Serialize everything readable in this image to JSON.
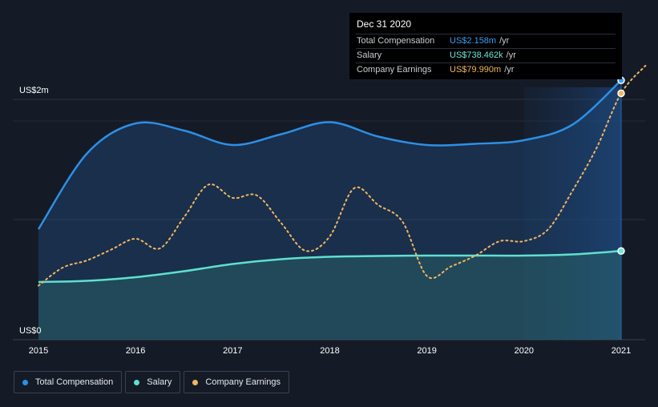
{
  "chart_data": {
    "type": "area",
    "x_ticks": [
      "2015",
      "2016",
      "2017",
      "2018",
      "2019",
      "2020",
      "2021"
    ],
    "y_ticks": [
      {
        "value": 0,
        "label": "US$0"
      },
      {
        "value": 2,
        "label": "US$2m"
      }
    ],
    "ylim": [
      0,
      2.1
    ],
    "units": "US$ millions",
    "series": [
      {
        "name": "Total Compensation",
        "color": "#2d8fe6",
        "x": [
          2015.0,
          2015.5,
          2016.0,
          2016.5,
          2017.0,
          2017.5,
          2018.0,
          2018.5,
          2019.0,
          2019.5,
          2020.0,
          2020.5,
          2021.0
        ],
        "values": [
          0.92,
          1.55,
          1.8,
          1.74,
          1.62,
          1.71,
          1.81,
          1.69,
          1.62,
          1.63,
          1.66,
          1.79,
          2.158
        ]
      },
      {
        "name": "Salary",
        "color": "#5ee0d0",
        "x": [
          2015.0,
          2015.5,
          2016.0,
          2016.5,
          2017.0,
          2017.5,
          2018.0,
          2018.5,
          2019.0,
          2019.5,
          2020.0,
          2020.5,
          2021.0
        ],
        "values": [
          0.48,
          0.49,
          0.52,
          0.57,
          0.63,
          0.67,
          0.69,
          0.697,
          0.7,
          0.7,
          0.7,
          0.71,
          0.738
        ]
      },
      {
        "name": "Company Earnings",
        "color": "#f3b563",
        "x": [
          2015.0,
          2015.25,
          2015.5,
          2015.75,
          2016.0,
          2016.25,
          2016.5,
          2016.75,
          2017.0,
          2017.25,
          2017.5,
          2017.75,
          2018.0,
          2018.25,
          2018.5,
          2018.75,
          2019.0,
          2019.25,
          2019.5,
          2019.75,
          2020.0,
          2020.25,
          2020.5,
          2020.75,
          2021.0,
          2021.25
        ],
        "values": [
          0.45,
          0.6,
          0.66,
          0.75,
          0.84,
          0.76,
          1.02,
          1.29,
          1.18,
          1.2,
          0.97,
          0.74,
          0.86,
          1.26,
          1.12,
          0.98,
          0.53,
          0.61,
          0.7,
          0.82,
          0.82,
          0.92,
          1.24,
          1.6,
          2.05,
          2.28
        ]
      }
    ],
    "highlight_x": 2021.0,
    "highlight_start": 2020.0,
    "grid": true,
    "legend": "bottom-left"
  },
  "tooltip": {
    "date": "Dec 31 2020",
    "rows": [
      {
        "name": "Total Compensation",
        "value": "US$2.158m",
        "unit": "/yr",
        "color": "#3a9cf0"
      },
      {
        "name": "Salary",
        "value": "US$738.462k",
        "unit": "/yr",
        "color": "#6fe8d8"
      },
      {
        "name": "Company Earnings",
        "value": "US$79.990m",
        "unit": "/yr",
        "color": "#f3b563"
      }
    ]
  },
  "legend": [
    {
      "label": "Total Compensation",
      "color": "#2d8fe6"
    },
    {
      "label": "Salary",
      "color": "#5ee0d0"
    },
    {
      "label": "Company Earnings",
      "color": "#f3b563"
    }
  ]
}
